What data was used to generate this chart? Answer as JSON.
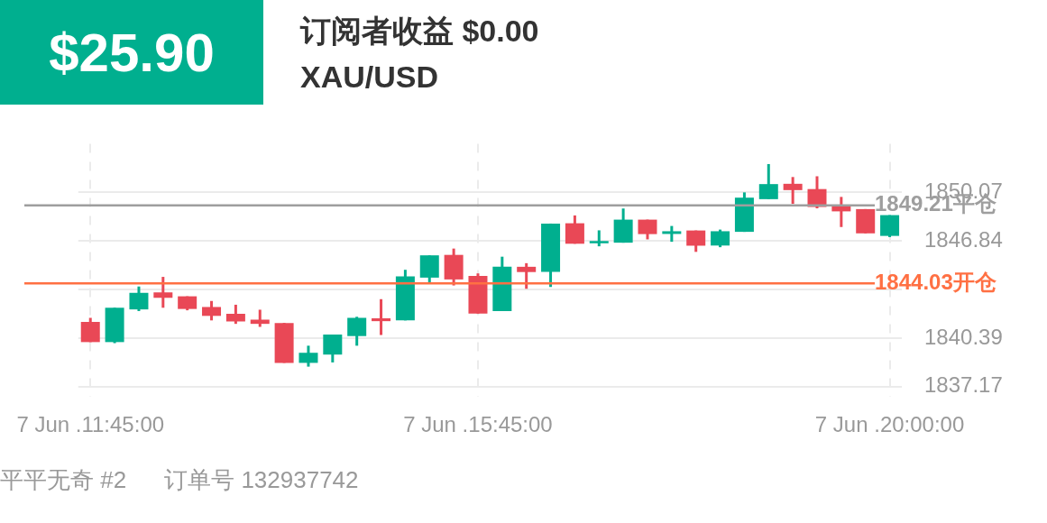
{
  "chart_data": {
    "type": "candlestick",
    "title": "订阅者收益 $0.00",
    "subtitle": "XAU/USD",
    "annotations": [
      "$25.90",
      "平平无奇 #2",
      "订单号 132937742"
    ],
    "categories": [
      "7 Jun .11:45:00",
      null,
      null,
      null,
      null,
      null,
      null,
      null,
      null,
      null,
      null,
      null,
      null,
      null,
      null,
      null,
      "7 Jun .15:45:00",
      null,
      null,
      null,
      null,
      null,
      null,
      null,
      null,
      null,
      null,
      null,
      null,
      null,
      null,
      null,
      null,
      "7 Jun .20:00:00"
    ],
    "ohlc": [
      [
        1841.47,
        1841.74,
        1840.13,
        1840.13
      ],
      [
        1840.13,
        1842.41,
        1840.06,
        1842.41
      ],
      [
        1842.3,
        1843.82,
        1842.19,
        1843.4
      ],
      [
        1843.43,
        1844.46,
        1842.41,
        1843.07
      ],
      [
        1843.17,
        1843.17,
        1842.24,
        1842.33
      ],
      [
        1842.46,
        1842.86,
        1841.57,
        1841.87
      ],
      [
        1842.01,
        1842.61,
        1841.34,
        1841.5
      ],
      [
        1841.62,
        1842.28,
        1841.14,
        1841.34
      ],
      [
        1841.4,
        1841.4,
        1838.75,
        1838.75
      ],
      [
        1838.75,
        1839.89,
        1838.5,
        1839.42
      ],
      [
        1839.3,
        1840.63,
        1838.78,
        1840.63
      ],
      [
        1840.53,
        1841.81,
        1839.89,
        1841.74
      ],
      [
        1841.71,
        1842.98,
        1840.6,
        1841.52
      ],
      [
        1841.57,
        1844.93,
        1841.57,
        1844.49
      ],
      [
        1844.41,
        1845.89,
        1844.09,
        1845.89
      ],
      [
        1845.92,
        1846.34,
        1843.89,
        1844.29
      ],
      [
        1844.53,
        1844.69,
        1842.02,
        1842.02
      ],
      [
        1842.19,
        1845.8,
        1842.19,
        1845.13
      ],
      [
        1845.13,
        1845.37,
        1843.67,
        1844.78
      ],
      [
        1844.79,
        1848.0,
        1843.79,
        1848.0
      ],
      [
        1848.02,
        1848.54,
        1846.66,
        1846.66
      ],
      [
        1846.69,
        1847.55,
        1846.49,
        1846.84
      ],
      [
        1846.73,
        1849.0,
        1846.73,
        1848.26
      ],
      [
        1848.26,
        1848.26,
        1846.95,
        1847.3
      ],
      [
        1847.31,
        1847.84,
        1846.79,
        1847.49
      ],
      [
        1847.54,
        1847.54,
        1846.12,
        1846.53
      ],
      [
        1846.54,
        1847.6,
        1846.43,
        1847.49
      ],
      [
        1847.45,
        1850.07,
        1847.45,
        1849.72
      ],
      [
        1849.62,
        1851.95,
        1849.62,
        1850.62
      ],
      [
        1850.64,
        1851.09,
        1849.31,
        1850.22
      ],
      [
        1850.29,
        1851.14,
        1849.01,
        1849.1
      ],
      [
        1849.21,
        1849.77,
        1847.77,
        1848.81
      ],
      [
        1848.96,
        1848.96,
        1847.35,
        1847.35
      ],
      [
        1847.18,
        1848.56,
        1847.1,
        1848.56
      ]
    ],
    "colors": [
      "#e94856",
      "#00af8f",
      "#00af8f",
      "#e94856",
      "#e94856",
      "#e94856",
      "#e94856",
      "#e94856",
      "#e94856",
      "#00af8f",
      "#00af8f",
      "#00af8f",
      "#e94856",
      "#00af8f",
      "#00af8f",
      "#e94856",
      "#e94856",
      "#00af8f",
      "#e94856",
      "#00af8f",
      "#e94856",
      "#00af8f",
      "#00af8f",
      "#e94856",
      "#00af8f",
      "#e94856",
      "#00af8f",
      "#00af8f",
      "#00af8f",
      "#e94856",
      "#e94856",
      "#e94856",
      "#e94856",
      "#00af8f"
    ],
    "ylim": [
      1836.5,
      1853.3
    ],
    "yticks": [
      1837.17,
      1840.39,
      {
        "value": 1843.62,
        "label": null
      },
      1846.84,
      1850.07
    ],
    "ref_lines": [
      {
        "axis": "y",
        "value": 1849.21,
        "label": "1849.21平仓",
        "color": "#9e9e9e"
      },
      {
        "axis": "y",
        "value": 1844.03,
        "label": "1844.03开仓",
        "color": "#ff7043"
      }
    ],
    "grid": true
  }
}
